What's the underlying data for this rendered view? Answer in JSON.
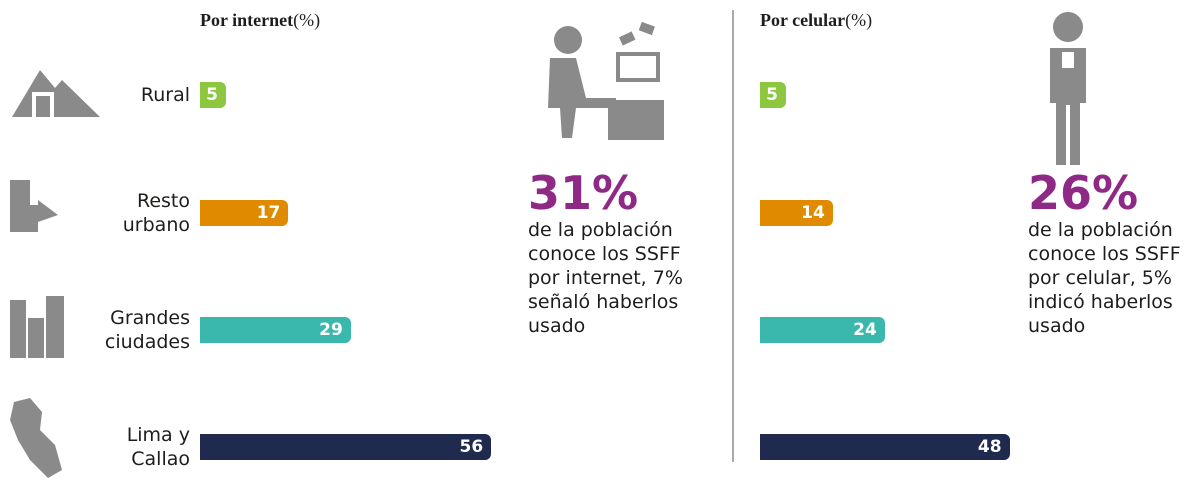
{
  "chart_data": [
    {
      "type": "bar",
      "title": "Por internet",
      "unit": "(%)",
      "categories": [
        "Rural",
        "Resto urbano",
        "Grandes ciudades",
        "Lima y Callao"
      ],
      "values": [
        5,
        17,
        29,
        56
      ],
      "colors": [
        "#8dc63f",
        "#e08a00",
        "#3bb8ad",
        "#1f2a4e"
      ],
      "callout_value": "31%",
      "callout_text": "de la población conoce los SSFF por internet, 7% señaló haberlos usado"
    },
    {
      "type": "bar",
      "title": "Por celular",
      "unit": "(%)",
      "values": [
        5,
        14,
        24,
        48
      ],
      "colors": [
        "#8dc63f",
        "#e08a00",
        "#3bb8ad",
        "#1f2a4e"
      ],
      "callout_value": "26%",
      "callout_text": "de la población conoce los SSFF por celular, 5% indicó haberlos usado"
    }
  ]
}
